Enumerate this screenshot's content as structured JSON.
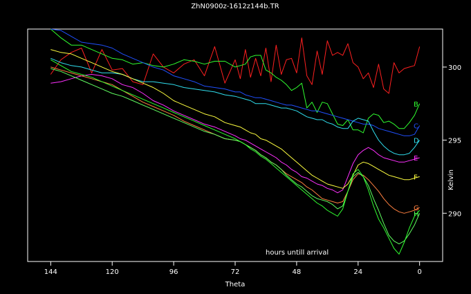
{
  "chart_data": {
    "type": "line",
    "title": "ZhN0900z-1612z144b.TR",
    "xlabel": "Theta",
    "ylabel": "Kelvin",
    "annotation": "hours untill arrival",
    "x_reversed": true,
    "xlim": [
      153,
      -9
    ],
    "ylim": [
      286.7,
      302.6
    ],
    "xticks": [
      144,
      120,
      96,
      72,
      48,
      24,
      0
    ],
    "yticks": [
      290,
      295,
      300
    ],
    "grid": false,
    "series": [
      {
        "name": "",
        "color": "#ff2020",
        "x": [
          144,
          140,
          136,
          132,
          128,
          124,
          120,
          116,
          112,
          108,
          104,
          100,
          96,
          92,
          88,
          84,
          80,
          76,
          72,
          70,
          68,
          66,
          64,
          62,
          60,
          58,
          56,
          54,
          52,
          50,
          48,
          46,
          44,
          42,
          40,
          38,
          36,
          34,
          32,
          30,
          28,
          26,
          24,
          22,
          20,
          18,
          16,
          14,
          12,
          10,
          8,
          6,
          4,
          2,
          0
        ],
        "y": [
          299.5,
          300.5,
          301.0,
          301.3,
          299.6,
          301.2,
          299.8,
          299.9,
          299.0,
          298.8,
          300.9,
          300.0,
          299.6,
          300.2,
          300.5,
          299.4,
          301.4,
          298.9,
          300.5,
          299.2,
          301.2,
          299.3,
          300.6,
          299.4,
          301.3,
          299.0,
          301.5,
          299.5,
          300.5,
          300.6,
          299.6,
          302.0,
          299.4,
          298.8,
          301.1,
          299.5,
          301.8,
          300.8,
          301.0,
          300.8,
          301.6,
          300.3,
          300.0,
          299.2,
          299.6,
          298.6,
          300.2,
          298.5,
          298.2,
          300.3,
          299.6,
          299.9,
          300.0,
          300.1,
          301.4
        ]
      },
      {
        "name": "B",
        "color": "#30ff30",
        "x": [
          144,
          140,
          136,
          132,
          128,
          124,
          120,
          116,
          112,
          108,
          104,
          100,
          96,
          92,
          88,
          84,
          80,
          76,
          72,
          70,
          68,
          66,
          64,
          62,
          60,
          58,
          56,
          54,
          52,
          50,
          48,
          46,
          44,
          42,
          40,
          38,
          36,
          34,
          32,
          30,
          28,
          26,
          24,
          22,
          20,
          18,
          16,
          14,
          12,
          10,
          8,
          6,
          4,
          2,
          0
        ],
        "y": [
          302.6,
          302.0,
          301.5,
          301.5,
          301.2,
          300.9,
          300.6,
          300.5,
          300.2,
          300.3,
          300.1,
          300.0,
          300.2,
          300.5,
          300.4,
          300.2,
          300.4,
          300.4,
          300.0,
          300.1,
          300.2,
          300.7,
          300.8,
          300.8,
          299.8,
          299.6,
          299.3,
          299.1,
          298.8,
          298.4,
          298.6,
          298.9,
          297.2,
          297.6,
          296.9,
          297.6,
          297.5,
          296.8,
          296.1,
          296.0,
          296.4,
          295.7,
          295.7,
          295.5,
          296.5,
          296.8,
          296.7,
          296.2,
          296.3,
          296.1,
          295.8,
          295.8,
          296.2,
          296.7,
          297.5
        ]
      },
      {
        "name": "C",
        "color": "#2050ff",
        "x": [
          144,
          140,
          136,
          132,
          128,
          124,
          120,
          116,
          112,
          108,
          104,
          100,
          96,
          92,
          88,
          84,
          80,
          76,
          72,
          70,
          68,
          66,
          64,
          62,
          60,
          58,
          56,
          54,
          52,
          50,
          48,
          46,
          44,
          42,
          40,
          38,
          36,
          34,
          32,
          30,
          28,
          26,
          24,
          22,
          20,
          18,
          16,
          14,
          12,
          10,
          8,
          6,
          4,
          2,
          0
        ],
        "y": [
          302.6,
          302.5,
          302.1,
          301.7,
          301.6,
          301.5,
          301.3,
          300.9,
          300.6,
          300.3,
          300.0,
          299.8,
          299.4,
          299.2,
          299.0,
          298.7,
          298.6,
          298.5,
          298.3,
          298.3,
          298.1,
          298.0,
          297.9,
          297.9,
          297.8,
          297.7,
          297.6,
          297.5,
          297.4,
          297.4,
          297.3,
          297.2,
          297.1,
          297.0,
          297.0,
          296.9,
          296.8,
          296.7,
          296.6,
          296.5,
          296.4,
          296.3,
          296.2,
          296.1,
          296.1,
          296.0,
          295.8,
          295.7,
          295.6,
          295.5,
          295.4,
          295.3,
          295.3,
          295.4,
          296.0
        ]
      },
      {
        "name": "D",
        "color": "#30e0f0",
        "x": [
          144,
          140,
          136,
          132,
          128,
          124,
          120,
          116,
          112,
          108,
          104,
          100,
          96,
          92,
          88,
          84,
          80,
          76,
          72,
          70,
          68,
          66,
          64,
          62,
          60,
          58,
          56,
          54,
          52,
          50,
          48,
          46,
          44,
          42,
          40,
          38,
          36,
          34,
          32,
          30,
          28,
          26,
          24,
          22,
          20,
          18,
          16,
          14,
          12,
          10,
          8,
          6,
          4,
          2,
          0
        ],
        "y": [
          300.6,
          300.3,
          300.1,
          300.0,
          299.8,
          299.6,
          299.6,
          299.5,
          299.2,
          299.0,
          299.0,
          298.9,
          298.8,
          298.6,
          298.5,
          298.4,
          298.3,
          298.1,
          298.0,
          297.9,
          297.8,
          297.7,
          297.5,
          297.5,
          297.5,
          297.4,
          297.3,
          297.2,
          297.2,
          297.1,
          297.0,
          296.8,
          296.6,
          296.5,
          296.4,
          296.4,
          296.2,
          296.1,
          295.9,
          295.8,
          295.8,
          296.3,
          296.5,
          296.4,
          296.3,
          295.6,
          295.0,
          294.6,
          294.3,
          294.1,
          294.0,
          294.0,
          294.1,
          294.5,
          295.0
        ]
      },
      {
        "name": "E",
        "color": "#ff30ff",
        "x": [
          144,
          140,
          136,
          132,
          128,
          124,
          120,
          116,
          112,
          108,
          104,
          100,
          96,
          92,
          88,
          84,
          80,
          76,
          72,
          70,
          68,
          66,
          64,
          62,
          60,
          58,
          56,
          54,
          52,
          50,
          48,
          46,
          44,
          42,
          40,
          38,
          36,
          34,
          32,
          30,
          28,
          26,
          24,
          22,
          20,
          18,
          16,
          14,
          12,
          10,
          8,
          6,
          4,
          2,
          0
        ],
        "y": [
          298.9,
          299.0,
          299.2,
          299.4,
          299.5,
          299.4,
          299.2,
          298.8,
          298.6,
          298.2,
          297.7,
          297.4,
          297.0,
          296.7,
          296.4,
          296.1,
          295.9,
          295.6,
          295.3,
          295.1,
          295.0,
          294.8,
          294.6,
          294.4,
          294.2,
          294.0,
          293.8,
          293.5,
          293.3,
          293.0,
          292.8,
          292.5,
          292.4,
          292.2,
          292.0,
          291.9,
          291.7,
          291.6,
          291.4,
          291.6,
          292.5,
          293.4,
          294.0,
          294.3,
          294.5,
          294.3,
          294.0,
          293.8,
          293.7,
          293.6,
          293.5,
          293.5,
          293.6,
          293.7,
          293.8
        ]
      },
      {
        "name": "F",
        "color": "#ffff40",
        "x": [
          144,
          140,
          136,
          132,
          128,
          124,
          120,
          116,
          112,
          108,
          104,
          100,
          96,
          92,
          88,
          84,
          80,
          76,
          72,
          70,
          68,
          66,
          64,
          62,
          60,
          58,
          56,
          54,
          52,
          50,
          48,
          46,
          44,
          42,
          40,
          38,
          36,
          34,
          32,
          30,
          28,
          26,
          24,
          22,
          20,
          18,
          16,
          14,
          12,
          10,
          8,
          6,
          4,
          2,
          0
        ],
        "y": [
          301.2,
          301.0,
          300.9,
          300.6,
          300.3,
          300.0,
          299.7,
          299.5,
          299.2,
          298.9,
          298.6,
          298.2,
          297.7,
          297.4,
          297.1,
          296.8,
          296.6,
          296.2,
          296.0,
          295.9,
          295.7,
          295.5,
          295.4,
          295.1,
          295.0,
          294.8,
          294.6,
          294.4,
          294.1,
          293.8,
          293.5,
          293.2,
          292.9,
          292.6,
          292.4,
          292.2,
          292.0,
          291.9,
          291.8,
          291.7,
          292.0,
          292.6,
          293.3,
          293.5,
          293.4,
          293.2,
          293.0,
          292.8,
          292.6,
          292.5,
          292.4,
          292.3,
          292.3,
          292.4,
          292.5
        ]
      },
      {
        "name": "G",
        "color": "#ff8040",
        "x": [
          144,
          140,
          136,
          132,
          128,
          124,
          120,
          116,
          112,
          108,
          104,
          100,
          96,
          92,
          88,
          84,
          80,
          76,
          72,
          70,
          68,
          66,
          64,
          62,
          60,
          58,
          56,
          54,
          52,
          50,
          48,
          46,
          44,
          42,
          40,
          38,
          36,
          34,
          32,
          30,
          28,
          26,
          24,
          22,
          20,
          18,
          16,
          14,
          12,
          10,
          8,
          6,
          4,
          2,
          0
        ],
        "y": [
          300.0,
          299.8,
          299.6,
          299.4,
          299.2,
          299.0,
          298.8,
          298.4,
          298.0,
          297.6,
          297.3,
          297.0,
          296.7,
          296.3,
          296.0,
          295.7,
          295.4,
          295.1,
          295.0,
          294.9,
          294.7,
          294.5,
          294.3,
          294.0,
          293.8,
          293.5,
          293.3,
          293.0,
          292.7,
          292.5,
          292.3,
          292.1,
          291.8,
          291.6,
          291.3,
          291.0,
          290.9,
          290.8,
          290.7,
          290.8,
          291.5,
          292.3,
          292.7,
          292.6,
          292.3,
          291.9,
          291.5,
          291.0,
          290.6,
          290.3,
          290.1,
          290.0,
          290.1,
          290.2,
          290.4
        ]
      },
      {
        "name": "H",
        "color": "#60ff60",
        "x": [
          144,
          140,
          136,
          132,
          128,
          124,
          120,
          116,
          112,
          108,
          104,
          100,
          96,
          92,
          88,
          84,
          80,
          76,
          72,
          70,
          68,
          66,
          64,
          62,
          60,
          58,
          56,
          54,
          52,
          50,
          48,
          46,
          44,
          42,
          40,
          38,
          36,
          34,
          32,
          30,
          28,
          26,
          24,
          22,
          20,
          18,
          16,
          14,
          12,
          10,
          8,
          6,
          4,
          2,
          0
        ],
        "y": [
          299.9,
          299.7,
          299.4,
          299.1,
          298.8,
          298.5,
          298.2,
          298.0,
          297.7,
          297.4,
          297.1,
          296.8,
          296.5,
          296.2,
          295.9,
          295.6,
          295.4,
          295.1,
          295.0,
          294.9,
          294.7,
          294.5,
          294.3,
          294.0,
          293.8,
          293.5,
          293.3,
          293.0,
          292.6,
          292.3,
          292.0,
          291.8,
          291.5,
          291.2,
          291.0,
          290.9,
          290.8,
          290.6,
          290.3,
          290.5,
          291.5,
          292.5,
          292.8,
          292.5,
          291.9,
          291.0,
          290.2,
          289.3,
          288.5,
          288.1,
          287.9,
          288.1,
          288.6,
          289.2,
          290.0
        ]
      },
      {
        "name": "",
        "color": "#30ff30",
        "x": [
          144,
          140,
          136,
          132,
          128,
          124,
          120,
          116,
          112,
          108,
          104,
          100,
          96,
          92,
          88,
          84,
          80,
          76,
          72,
          70,
          68,
          66,
          64,
          62,
          60,
          58,
          56,
          54,
          52,
          50,
          48,
          46,
          44,
          42,
          40,
          38,
          36,
          34,
          32,
          30,
          28,
          26,
          24,
          22,
          20,
          18,
          16,
          14,
          12,
          10,
          8,
          6,
          4,
          2,
          0
        ],
        "y": [
          300.5,
          300.1,
          299.7,
          299.5,
          299.3,
          299.0,
          298.7,
          298.4,
          298.1,
          297.8,
          297.5,
          297.2,
          296.9,
          296.6,
          296.3,
          296.0,
          295.7,
          295.4,
          295.1,
          294.9,
          294.7,
          294.4,
          294.2,
          293.9,
          293.7,
          293.4,
          293.1,
          292.8,
          292.5,
          292.2,
          291.9,
          291.6,
          291.3,
          291.0,
          290.7,
          290.5,
          290.2,
          290.0,
          289.8,
          290.3,
          291.5,
          292.7,
          293.0,
          292.5,
          291.6,
          290.5,
          289.6,
          289.0,
          288.3,
          287.6,
          287.2,
          288.0,
          289.0,
          289.8,
          290.2
        ]
      }
    ]
  }
}
